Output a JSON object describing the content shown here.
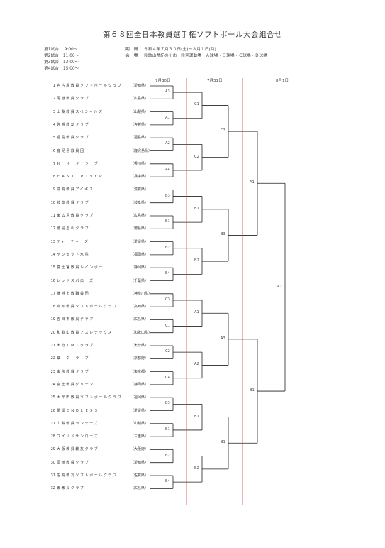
{
  "title": "第６８回全日本教員選手権ソフトボール大会組合せ",
  "schedule": [
    "第1試合：  9:00～",
    "第2試合：11:00～",
    "第3試合：13:00～",
    "第4試合：15:00～"
  ],
  "period_label": "期　間",
  "period_value": "令和４年７月３０日(土)～８月１日(月)",
  "venue_label": "会　場",
  "venue_value": "和歌山県紀の川市　粉河運動場　Ａ球場・Ｂ球場・Ｃ球場・Ｄ球場",
  "dates": [
    "7月30日",
    "7月31日",
    "8月1日"
  ],
  "teams": [
    {
      "num": "1",
      "name": "名古屋教員ソフトボールクラブ",
      "pref": "（愛知県）"
    },
    {
      "num": "2",
      "name": "尾道教員クラブ",
      "pref": "（広島県）"
    },
    {
      "num": "3",
      "name": "山梨教員スペシャルズ",
      "pref": "（山梨県）"
    },
    {
      "num": "4",
      "name": "佐賀教友クラブ",
      "pref": "（佐賀県）"
    },
    {
      "num": "5",
      "name": "福島教員クラブ",
      "pref": "（福島県）"
    },
    {
      "num": "6",
      "name": "鹿児島教員団",
      "pref": "（鹿児島県）"
    },
    {
      "num": "7",
      "name": "Ｋ　Ｋ　ク　ラ　ブ",
      "pref": "（香川県）"
    },
    {
      "num": "8",
      "name": "ＥＡＳＴ　ＲＩＶＥＲ",
      "pref": "（兵庫県）"
    },
    {
      "num": "9",
      "name": "滋賀教員アイギス",
      "pref": "（滋賀県）"
    },
    {
      "num": "10",
      "name": "岐阜教員クラブ",
      "pref": "（岐阜県）"
    },
    {
      "num": "11",
      "name": "東広島教員クラブ",
      "pref": "（広島県）"
    },
    {
      "num": "12",
      "name": "徳島眉山クラブ",
      "pref": "（徳島県）"
    },
    {
      "num": "13",
      "name": "ティーチャーズ",
      "pref": "（愛媛県）"
    },
    {
      "num": "14",
      "name": "ヤンセット水島",
      "pref": "（福岡県）"
    },
    {
      "num": "15",
      "name": "富士宮教員レインボー",
      "pref": "（静岡県）"
    },
    {
      "num": "16",
      "name": "レッドスパローズ",
      "pref": "（千葉県）"
    },
    {
      "num": "17",
      "name": "横浜市教職員団",
      "pref": "（神奈川県）"
    },
    {
      "num": "18",
      "name": "高知教員ソフトボールクラブ",
      "pref": "（高知県）"
    },
    {
      "num": "19",
      "name": "五日市教員クラブ",
      "pref": "（広島県）"
    },
    {
      "num": "20",
      "name": "和歌山教員アスレチックス",
      "pref": "（和歌山県）"
    },
    {
      "num": "21",
      "name": "大分ＩＭＴクラブ",
      "pref": "（大分県）"
    },
    {
      "num": "22",
      "name": "桑　ク　ラ　ブ",
      "pref": "（京都府）"
    },
    {
      "num": "23",
      "name": "東京教員クラブ",
      "pref": "（東京都）"
    },
    {
      "num": "24",
      "name": "富士教員グリーン",
      "pref": "（静岡県）"
    },
    {
      "num": "25",
      "name": "大牟田教員ソフトボールクラブ",
      "pref": "（福岡県）"
    },
    {
      "num": "26",
      "name": "愛媛ＥＮＤＬＥＳＳ",
      "pref": "（愛媛県）"
    },
    {
      "num": "27",
      "name": "山梨教員ランナーズ",
      "pref": "（山梨県）"
    },
    {
      "num": "28",
      "name": "ワイルドサンローズ",
      "pref": "（三重県）"
    },
    {
      "num": "29",
      "name": "大阪教員教友クラブ",
      "pref": "（大阪府）"
    },
    {
      "num": "30",
      "name": "岡崎教員クラブ",
      "pref": "（愛知県）"
    },
    {
      "num": "31",
      "name": "佐賀教友ソフトボールクラブ",
      "pref": "（佐賀県）"
    },
    {
      "num": "32",
      "name": "東教員クラブ",
      "pref": "（広島県）"
    }
  ],
  "round1_labels": [
    "A3",
    "A1",
    "A2",
    "A4",
    "B3",
    "B1",
    "B2",
    "B4",
    "C3",
    "C1",
    "C2",
    "C4",
    "B3",
    "B1",
    "B2",
    "B4"
  ],
  "round2_labels": [
    "C1",
    "C2",
    "B1",
    "B2",
    "A1",
    "A2",
    "B1",
    "B2"
  ],
  "round3_labels": [
    "C3",
    "B3",
    "A3",
    "B1"
  ],
  "round4_labels": [
    "A1",
    "B1"
  ],
  "final_label": "A2"
}
